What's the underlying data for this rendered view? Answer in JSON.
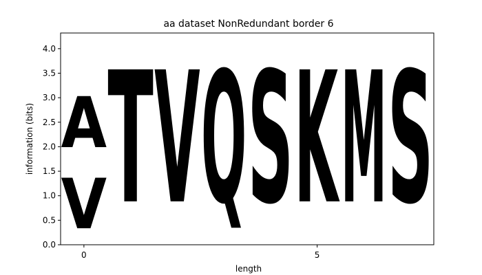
{
  "chart_data": {
    "type": "sequence-logo",
    "title": "aa dataset NonRedundant border 6",
    "xlabel": "length",
    "ylabel": "information (bits)",
    "xlim": [
      -0.5,
      7.5
    ],
    "ylim": [
      0,
      4.32
    ],
    "x_ticks": [
      0,
      5
    ],
    "y_ticks": [
      0.0,
      0.5,
      1.0,
      1.5,
      2.0,
      2.5,
      3.0,
      3.5,
      4.0
    ],
    "y_tick_labels": [
      "0.0",
      "0.5",
      "1.0",
      "1.5",
      "2.0",
      "2.5",
      "3.0",
      "3.5",
      "4.0"
    ],
    "grid": false,
    "colors": {
      "A": "#000000",
      "V": "#000000",
      "T": "#21d92b",
      "Q": "#d61fc1",
      "S": "#21d92b",
      "K": "#0c1bbf",
      "M": "#000000"
    },
    "positions": [
      {
        "x": 0,
        "stack": [
          {
            "letter": "V",
            "bottom": 0.0,
            "top": 1.65
          },
          {
            "letter": "A",
            "bottom": 1.65,
            "top": 3.32
          }
        ]
      },
      {
        "x": 1,
        "stack": [
          {
            "letter": "T",
            "bottom": 0.0,
            "top": 4.32
          }
        ]
      },
      {
        "x": 2,
        "stack": [
          {
            "letter": "V",
            "bottom": 0.0,
            "top": 4.32
          }
        ]
      },
      {
        "x": 3,
        "stack": [
          {
            "letter": "Q",
            "bottom": 0.0,
            "top": 4.32
          }
        ]
      },
      {
        "x": 4,
        "stack": [
          {
            "letter": "S",
            "bottom": 0.0,
            "top": 4.32
          }
        ]
      },
      {
        "x": 5,
        "stack": [
          {
            "letter": "K",
            "bottom": 0.0,
            "top": 4.32
          }
        ]
      },
      {
        "x": 6,
        "stack": [
          {
            "letter": "M",
            "bottom": 0.0,
            "top": 4.32
          }
        ]
      },
      {
        "x": 7,
        "stack": [
          {
            "letter": "S",
            "bottom": 0.0,
            "top": 4.32
          }
        ]
      }
    ]
  }
}
